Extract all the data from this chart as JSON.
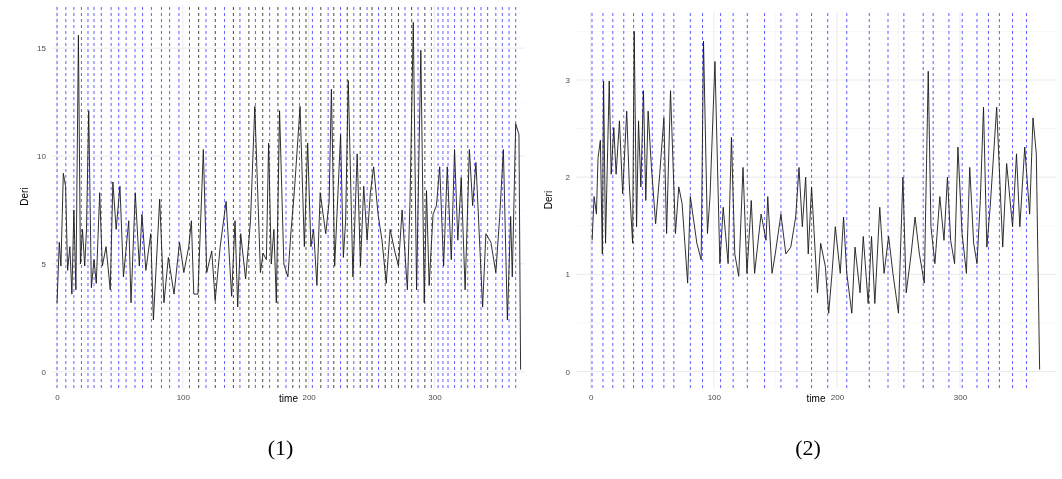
{
  "chart_data": [
    {
      "type": "line",
      "xlabel": "time",
      "ylabel": "Deri",
      "xlim": [
        -4,
        372
      ],
      "ylim": [
        -0.75,
        17
      ],
      "xticks": [
        0,
        100,
        200,
        300
      ],
      "yticks": [
        0,
        5,
        10,
        15
      ],
      "grid": true,
      "line_style": "solid",
      "annotations": [
        "(1)"
      ],
      "series": [
        {
          "color": "#1a1a1a",
          "x": [
            0,
            1.8,
            3.1,
            5,
            6.8,
            8.4,
            10.2,
            11.8,
            13.4,
            15,
            17,
            18.6,
            20.2,
            22,
            23.4,
            25.2,
            27.3,
            29.4,
            31.2,
            33.9,
            36,
            39,
            42.3,
            44.4,
            47,
            50,
            52.8,
            57,
            58.8,
            62.2,
            65.4,
            67.5,
            70.6,
            74.5,
            76.6,
            81.6,
            85,
            88.5,
            93,
            97.4,
            100.8,
            104.7,
            106.8,
            108.7,
            112,
            116.3,
            119,
            123,
            125.7,
            129.7,
            134.4,
            138.8,
            141.5,
            143.6,
            146,
            149.9,
            153.8,
            157.2,
            161.7,
            163.8,
            166.4,
            168.2,
            170.3,
            172.4,
            174.3,
            176.9,
            180.3,
            183.5,
            186.1,
            188.7,
            193.2,
            196.6,
            199.2,
            201.8,
            203.9,
            206.6,
            209.2,
            213.6,
            216.3,
            218.1,
            220.7,
            225.4,
            227.6,
            229.4,
            231.5,
            235.2,
            238.6,
            241.2,
            243.8,
            246.5,
            249.1,
            251.7,
            255.2,
            258.3,
            261.7,
            264.8,
            268.8,
            271.4,
            274.3,
            278.5,
            280.6,
            283.2,
            285.8,
            289.2,
            291.9,
            293.7,
            295.8,
            298.9,
            301.6,
            304.2,
            307.3,
            310.2,
            313.4,
            316,
            318.6,
            321.3,
            324.4,
            327.8,
            330.4,
            333,
            338.3,
            340.9,
            344.9,
            348.8,
            351.9,
            354.8,
            358,
            360.6,
            361.9,
            364.6,
            367.2,
            368.5
          ],
          "values": [
            3.2,
            6.0,
            4.9,
            9.2,
            8.6,
            4.7,
            5.8,
            3.6,
            7.5,
            3.8,
            15.6,
            5.0,
            6.6,
            4.9,
            6.6,
            12.1,
            3.9,
            5.2,
            4.1,
            8.3,
            4.9,
            5.8,
            3.8,
            8.8,
            6.6,
            8.6,
            4.4,
            7.0,
            3.2,
            8.3,
            4.9,
            7.3,
            4.7,
            6.4,
            2.4,
            8.0,
            3.2,
            5.3,
            3.6,
            6.0,
            4.6,
            5.8,
            7.0,
            3.6,
            3.6,
            10.3,
            4.6,
            5.6,
            3.3,
            5.8,
            7.9,
            3.5,
            7.0,
            3.0,
            6.4,
            4.3,
            7.0,
            12.3,
            4.6,
            5.5,
            5.2,
            10.6,
            5.0,
            6.6,
            3.2,
            12.1,
            5.0,
            4.4,
            6.6,
            8.4,
            12.3,
            5.8,
            10.6,
            5.8,
            6.6,
            4.0,
            8.3,
            6.4,
            7.9,
            13.1,
            4.9,
            11.0,
            5.3,
            7.0,
            13.5,
            4.4,
            10.1,
            4.9,
            8.6,
            6.1,
            8.3,
            9.5,
            7.3,
            6.1,
            4.1,
            6.6,
            5.5,
            4.9,
            7.5,
            3.8,
            7.9,
            16.2,
            3.8,
            14.9,
            3.2,
            8.4,
            4.0,
            7.3,
            7.7,
            9.5,
            4.9,
            9.5,
            5.2,
            10.3,
            6.1,
            9.0,
            3.8,
            10.3,
            7.7,
            9.7,
            3.0,
            6.4,
            6.0,
            4.6,
            7.2,
            10.3,
            2.4,
            7.2,
            4.4,
            11.5,
            11.0,
            0.1
          ]
        }
      ],
      "ref_lines": [
        {
          "axis": "x",
          "value": 0,
          "color": "#4d4dff",
          "line_style": "dashed"
        },
        {
          "axis": "x",
          "value": 7,
          "color": "#4d4dff",
          "line_style": "dashed"
        },
        {
          "axis": "x",
          "value": 13.4,
          "color": "#4d4dff",
          "line_style": "dashed"
        },
        {
          "axis": "x",
          "value": 19.4,
          "color": "#4d4dff",
          "line_style": "dashed"
        },
        {
          "axis": "x",
          "value": 24.6,
          "color": "#4d4dff",
          "line_style": "dashed"
        },
        {
          "axis": "x",
          "value": 29.4,
          "color": "#4d4dff",
          "line_style": "dashed"
        },
        {
          "axis": "x",
          "value": 35.2,
          "color": "#4d4dff",
          "line_style": "dashed"
        },
        {
          "axis": "x",
          "value": 43,
          "color": "#4d4dff",
          "line_style": "dashed"
        },
        {
          "axis": "x",
          "value": 49,
          "color": "#4d4dff",
          "line_style": "dashed"
        },
        {
          "axis": "x",
          "value": 54.9,
          "color": "#4d4dff",
          "line_style": "dashed"
        },
        {
          "axis": "x",
          "value": 62,
          "color": "#4d4dff",
          "line_style": "dashed"
        },
        {
          "axis": "x",
          "value": 68,
          "color": "#4d4dff",
          "line_style": "dashed"
        },
        {
          "axis": "x",
          "value": 75,
          "color": "#4d4dff",
          "line_style": "dashed"
        },
        {
          "axis": "x",
          "value": 83,
          "color": "#4d4dff",
          "line_style": "dashed"
        },
        {
          "axis": "x",
          "value": 89.5,
          "color": "#4d4dff",
          "line_style": "dashed"
        },
        {
          "axis": "x",
          "value": 96.9,
          "color": "#4d4dff",
          "line_style": "dashed"
        },
        {
          "axis": "x",
          "value": 105.3,
          "color": "#4d4dff",
          "line_style": "dashed"
        },
        {
          "axis": "x",
          "value": 112.6,
          "color": "#333333",
          "line_style": "dashed"
        },
        {
          "axis": "x",
          "value": 118.4,
          "color": "#4d4dff",
          "line_style": "dashed"
        },
        {
          "axis": "x",
          "value": 125.8,
          "color": "#333333",
          "line_style": "dashed"
        },
        {
          "axis": "x",
          "value": 133.1,
          "color": "#4d4dff",
          "line_style": "dashed"
        },
        {
          "axis": "x",
          "value": 140.2,
          "color": "#333333",
          "line_style": "dashed"
        },
        {
          "axis": "x",
          "value": 145.4,
          "color": "#4d4dff",
          "line_style": "dashed"
        },
        {
          "axis": "x",
          "value": 152.5,
          "color": "#333333",
          "line_style": "dashed"
        },
        {
          "axis": "x",
          "value": 157.7,
          "color": "#4d4dff",
          "line_style": "dashed"
        },
        {
          "axis": "x",
          "value": 163.5,
          "color": "#333333",
          "line_style": "dashed"
        },
        {
          "axis": "x",
          "value": 169,
          "color": "#4d4dff",
          "line_style": "dashed"
        },
        {
          "axis": "x",
          "value": 175.6,
          "color": "#333333",
          "line_style": "dashed"
        },
        {
          "axis": "x",
          "value": 182,
          "color": "#4d4dff",
          "line_style": "dashed"
        },
        {
          "axis": "x",
          "value": 187.4,
          "color": "#333333",
          "line_style": "dashed"
        },
        {
          "axis": "x",
          "value": 192.7,
          "color": "#4d4dff",
          "line_style": "dashed"
        },
        {
          "axis": "x",
          "value": 197.9,
          "color": "#333333",
          "line_style": "dashed"
        },
        {
          "axis": "x",
          "value": 203,
          "color": "#4d4dff",
          "line_style": "dashed"
        },
        {
          "axis": "x",
          "value": 209.7,
          "color": "#333333",
          "line_style": "dashed"
        },
        {
          "axis": "x",
          "value": 215.5,
          "color": "#4d4dff",
          "line_style": "dashed"
        },
        {
          "axis": "x",
          "value": 220,
          "color": "#333333",
          "line_style": "dashed"
        },
        {
          "axis": "x",
          "value": 225.4,
          "color": "#4d4dff",
          "line_style": "dashed"
        },
        {
          "axis": "x",
          "value": 230.7,
          "color": "#333333",
          "line_style": "dashed"
        },
        {
          "axis": "x",
          "value": 235.9,
          "color": "#4d4dff",
          "line_style": "dashed"
        },
        {
          "axis": "x",
          "value": 241,
          "color": "#333333",
          "line_style": "dashed"
        },
        {
          "axis": "x",
          "value": 246.5,
          "color": "#4d4dff",
          "line_style": "dashed"
        },
        {
          "axis": "x",
          "value": 250.4,
          "color": "#333333",
          "line_style": "dashed"
        },
        {
          "axis": "x",
          "value": 255.6,
          "color": "#4d4dff",
          "line_style": "dashed"
        },
        {
          "axis": "x",
          "value": 260.9,
          "color": "#333333",
          "line_style": "dashed"
        },
        {
          "axis": "x",
          "value": 266,
          "color": "#4d4dff",
          "line_style": "dashed"
        },
        {
          "axis": "x",
          "value": 271.4,
          "color": "#333333",
          "line_style": "dashed"
        },
        {
          "axis": "x",
          "value": 276.6,
          "color": "#4d4dff",
          "line_style": "dashed"
        },
        {
          "axis": "x",
          "value": 281.9,
          "color": "#333333",
          "line_style": "dashed"
        },
        {
          "axis": "x",
          "value": 287,
          "color": "#4d4dff",
          "line_style": "dashed"
        },
        {
          "axis": "x",
          "value": 292.4,
          "color": "#333333",
          "line_style": "dashed"
        },
        {
          "axis": "x",
          "value": 297.6,
          "color": "#4d4dff",
          "line_style": "dashed"
        },
        {
          "axis": "x",
          "value": 302.9,
          "color": "#4d4dff",
          "line_style": "dashed"
        },
        {
          "axis": "x",
          "value": 306.8,
          "color": "#4d4dff",
          "line_style": "dashed"
        },
        {
          "axis": "x",
          "value": 310.8,
          "color": "#4d4dff",
          "line_style": "dashed"
        },
        {
          "axis": "x",
          "value": 316,
          "color": "#4d4dff",
          "line_style": "dashed"
        },
        {
          "axis": "x",
          "value": 321.3,
          "color": "#4d4dff",
          "line_style": "dashed"
        },
        {
          "axis": "x",
          "value": 326.5,
          "color": "#4d4dff",
          "line_style": "dashed"
        },
        {
          "axis": "x",
          "value": 331.8,
          "color": "#4d4dff",
          "line_style": "dashed"
        },
        {
          "axis": "x",
          "value": 337,
          "color": "#4d4dff",
          "line_style": "dashed"
        },
        {
          "axis": "x",
          "value": 342.3,
          "color": "#4d4dff",
          "line_style": "dashed"
        },
        {
          "axis": "x",
          "value": 348.8,
          "color": "#4d4dff",
          "line_style": "dashed"
        },
        {
          "axis": "x",
          "value": 354,
          "color": "#4d4dff",
          "line_style": "dashed"
        },
        {
          "axis": "x",
          "value": 359.3,
          "color": "#4d4dff",
          "line_style": "dashed"
        },
        {
          "axis": "x",
          "value": 364.6,
          "color": "#4d4dff",
          "line_style": "dashed"
        }
      ]
    },
    {
      "type": "line",
      "xlabel": "time",
      "ylabel": "Deri",
      "xlim": [
        -12,
        378
      ],
      "ylim": [
        -0.17,
        3.7
      ],
      "xticks": [
        0,
        100,
        200,
        300
      ],
      "yticks": [
        0,
        1,
        2,
        3
      ],
      "grid": true,
      "line_style": "solid",
      "annotations": [
        "(2)"
      ],
      "series": [
        {
          "color": "#1a1a1a",
          "x": [
            1.1,
            2.7,
            4.6,
            5.9,
            7.8,
            9.4,
            10.4,
            12,
            15,
            16.6,
            18.7,
            20.6,
            23.3,
            25.9,
            29.2,
            31.3,
            34,
            35.3,
            37.2,
            38.8,
            40.7,
            42.8,
            44.7,
            46.6,
            49.3,
            52.7,
            56,
            59.4,
            61.6,
            64.8,
            68.8,
            71.5,
            74.2,
            78.7,
            80.9,
            86.2,
            89.7,
            91.6,
            94.8,
            96.9,
            100.9,
            104.9,
            107.6,
            111.6,
            114.3,
            117,
            120.2,
            123.7,
            126.9,
            130.4,
            133.1,
            138.4,
            142.4,
            143.8,
            147.3,
            149.9,
            154.5,
            158.5,
            162.5,
            166.5,
            169.2,
            171.9,
            174.6,
            176.7,
            179.4,
            184.2,
            186.8,
            190.6,
            193.3,
            196,
            198.7,
            202.7,
            205.4,
            208,
            212.1,
            214.7,
            218.8,
            221.4,
            225.4,
            228.1,
            230.8,
            234.8,
            238.3,
            242,
            245.5,
            250,
            253.6,
            256.3,
            260.3,
            263.5,
            267,
            271,
            274.2,
            276.4,
            279.6,
            283.6,
            287,
            289.8,
            292.4,
            295.6,
            298.3,
            301.7,
            305.2,
            307.9,
            311.1,
            313.8,
            316.5,
            319.1,
            321.8,
            324.5,
            329.8,
            334.7,
            337.9,
            342.7,
            345.9,
            348.6,
            352.6,
            356.6,
            359.3,
            362,
            363.3,
            364.7
          ],
          "values": [
            1.35,
            1.8,
            1.62,
            2.2,
            2.38,
            1.21,
            2.99,
            1.32,
            2.99,
            2.03,
            2.51,
            2.03,
            2.58,
            1.83,
            2.68,
            1.93,
            1.32,
            3.5,
            1.49,
            2.58,
            1.9,
            2.89,
            1.76,
            2.68,
            2.1,
            1.52,
            2.03,
            2.61,
            1.42,
            2.89,
            1.42,
            1.9,
            1.73,
            0.91,
            1.8,
            1.32,
            1.15,
            3.4,
            1.42,
            1.8,
            3.19,
            1.11,
            1.69,
            1.11,
            2.41,
            1.21,
            0.98,
            2.1,
            1.01,
            1.76,
            1.01,
            1.62,
            1.35,
            1.8,
            1.01,
            1.21,
            1.62,
            1.21,
            1.28,
            1.59,
            2.1,
            1.49,
            2.0,
            1.21,
            1.9,
            0.81,
            1.32,
            1.08,
            0.6,
            1.01,
            1.49,
            1.01,
            1.59,
            1.01,
            0.6,
            1.28,
            0.81,
            1.39,
            0.7,
            1.39,
            0.7,
            1.69,
            1.01,
            1.39,
            1.01,
            0.6,
            2.0,
            0.81,
            1.21,
            1.59,
            1.21,
            0.91,
            3.09,
            1.49,
            1.11,
            1.8,
            1.35,
            2.0,
            1.35,
            1.11,
            2.31,
            1.42,
            1.01,
            2.1,
            1.32,
            1.11,
            1.76,
            2.72,
            1.28,
            1.69,
            2.72,
            1.28,
            2.14,
            1.49,
            2.24,
            1.49,
            2.31,
            1.62,
            2.61,
            2.24,
            1.15,
            0.02
          ]
        }
      ],
      "ref_lines": [
        {
          "axis": "x",
          "value": 1,
          "color": "#4d4dff",
          "line_style": "dashed"
        },
        {
          "axis": "x",
          "value": 9.9,
          "color": "#4d4dff",
          "line_style": "dashed"
        },
        {
          "axis": "x",
          "value": 17.9,
          "color": "#4d4dff",
          "line_style": "dashed"
        },
        {
          "axis": "x",
          "value": 26.8,
          "color": "#4d4dff",
          "line_style": "dashed"
        },
        {
          "axis": "x",
          "value": 34.8,
          "color": "#4d4dff",
          "line_style": "dashed"
        },
        {
          "axis": "x",
          "value": 42,
          "color": "#4d4dff",
          "line_style": "dashed"
        },
        {
          "axis": "x",
          "value": 50,
          "color": "#4d4dff",
          "line_style": "dashed"
        },
        {
          "axis": "x",
          "value": 59.4,
          "color": "#4d4dff",
          "line_style": "dashed"
        },
        {
          "axis": "x",
          "value": 67.5,
          "color": "#4d4dff",
          "line_style": "dashed"
        },
        {
          "axis": "x",
          "value": 80.9,
          "color": "#4d4dff",
          "line_style": "dashed"
        },
        {
          "axis": "x",
          "value": 90.8,
          "color": "#4d4dff",
          "line_style": "dashed"
        },
        {
          "axis": "x",
          "value": 105.5,
          "color": "#4d4dff",
          "line_style": "dashed"
        },
        {
          "axis": "x",
          "value": 115.7,
          "color": "#4d4dff",
          "line_style": "dashed"
        },
        {
          "axis": "x",
          "value": 127.2,
          "color": "#4d4dff",
          "line_style": "dashed"
        },
        {
          "axis": "x",
          "value": 141.2,
          "color": "#4d4dff",
          "line_style": "dashed"
        },
        {
          "axis": "x",
          "value": 154.5,
          "color": "#4d4dff",
          "line_style": "dashed"
        },
        {
          "axis": "x",
          "value": 167.5,
          "color": "#4d4dff",
          "line_style": "dashed"
        },
        {
          "axis": "x",
          "value": 179.4,
          "color": "#4d4dff",
          "line_style": "dashed"
        },
        {
          "axis": "x",
          "value": 192.5,
          "color": "#4d4dff",
          "line_style": "dashed"
        },
        {
          "axis": "x",
          "value": 208,
          "color": "#4d4dff",
          "line_style": "dashed"
        },
        {
          "axis": "x",
          "value": 226.3,
          "color": "#4d4dff",
          "line_style": "dashed"
        },
        {
          "axis": "x",
          "value": 241.5,
          "color": "#4d4dff",
          "line_style": "dashed"
        },
        {
          "axis": "x",
          "value": 254.4,
          "color": "#4d4dff",
          "line_style": "dashed"
        },
        {
          "axis": "x",
          "value": 270.1,
          "color": "#4d4dff",
          "line_style": "dashed"
        },
        {
          "axis": "x",
          "value": 278.2,
          "color": "#4d4dff",
          "line_style": "dashed"
        },
        {
          "axis": "x",
          "value": 291,
          "color": "#4d4dff",
          "line_style": "dashed"
        },
        {
          "axis": "x",
          "value": 301.8,
          "color": "#4d4dff",
          "line_style": "dashed"
        },
        {
          "axis": "x",
          "value": 313.8,
          "color": "#4d4dff",
          "line_style": "dashed"
        },
        {
          "axis": "x",
          "value": 323.1,
          "color": "#4d4dff",
          "line_style": "dashed"
        },
        {
          "axis": "x",
          "value": 332,
          "color": "#4d4dff",
          "line_style": "dashed"
        },
        {
          "axis": "x",
          "value": 342.7,
          "color": "#4d4dff",
          "line_style": "dashed"
        },
        {
          "axis": "x",
          "value": 354,
          "color": "#4d4dff",
          "line_style": "dashed"
        }
      ]
    }
  ]
}
